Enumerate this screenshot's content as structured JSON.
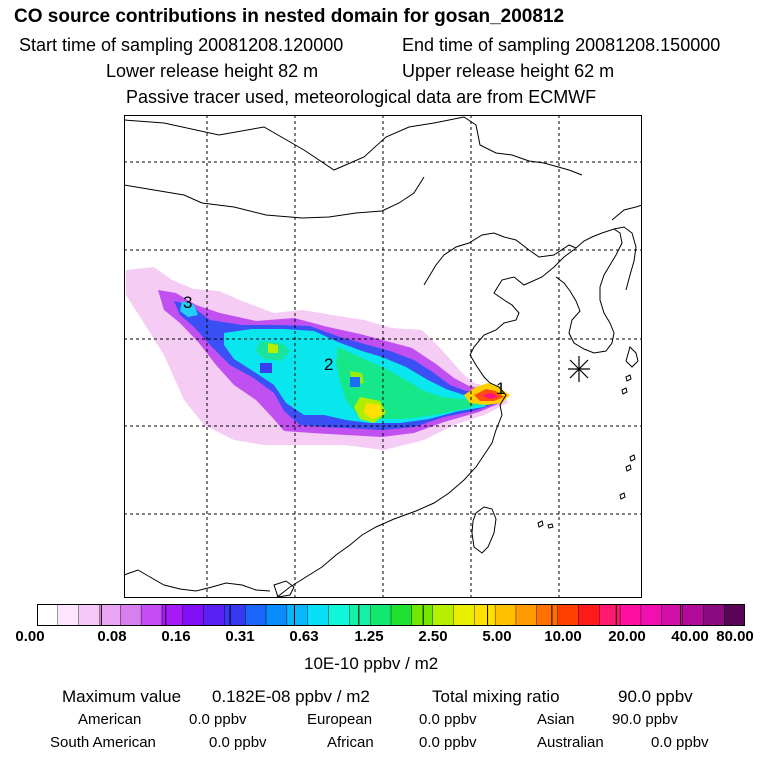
{
  "header": {
    "title": "CO  source contributions in nested domain for gosan_200812",
    "start_label": "Start time of sampling 20081208.120000",
    "end_label": "End time of sampling 20081208.150000",
    "lower_label": "Lower release height   82 m",
    "upper_label": "Upper release height   62 m",
    "note": "Passive tracer used, meteorological data are from ECMWF"
  },
  "map": {
    "markers": [
      {
        "label": "1"
      },
      {
        "label": "2"
      },
      {
        "label": "3"
      }
    ],
    "receptor": "star-receptor-icon"
  },
  "colorbar": {
    "tick_labels": [
      "0.00",
      "0.08",
      "0.16",
      "0.31",
      "0.63",
      "1.25",
      "2.50",
      "5.00",
      "10.00",
      "20.00",
      "40.00",
      "80.00"
    ],
    "units": "10E-10 ppbv / m2",
    "colors": [
      "#ffffff",
      "#fde6fd",
      "#f6c8f8",
      "#eaa5f2",
      "#d87ff0",
      "#c44ef3",
      "#a61af7",
      "#7f0ff7",
      "#5a20f2",
      "#3838f3",
      "#1a66f8",
      "#0a8cfa",
      "#08b6fb",
      "#08dff8",
      "#11f5d8",
      "#14f0a8",
      "#10e870",
      "#20e030",
      "#72e800",
      "#b7ef00",
      "#e8f000",
      "#ffe000",
      "#ffc000",
      "#ff9a00",
      "#ff7000",
      "#ff4000",
      "#ff1a1a",
      "#ff1a70",
      "#ff10a0",
      "#f010b0",
      "#d010a8",
      "#b00c98",
      "#8c0a80",
      "#5a0458"
    ]
  },
  "stats": {
    "max_label": "Maximum value",
    "max_value": "0.182E-08 ppbv / m2",
    "total_label": "Total mixing ratio",
    "total_value": "90.0 ppbv",
    "regions": [
      {
        "name": "American",
        "value": "0.0 ppbv"
      },
      {
        "name": "European",
        "value": "0.0 ppbv"
      },
      {
        "name": "Asian",
        "value": "90.0 ppbv"
      },
      {
        "name": "South American",
        "value": "0.0 ppbv"
      },
      {
        "name": "African",
        "value": "0.0 ppbv"
      },
      {
        "name": "Australian",
        "value": "0.0 ppbv"
      }
    ]
  }
}
